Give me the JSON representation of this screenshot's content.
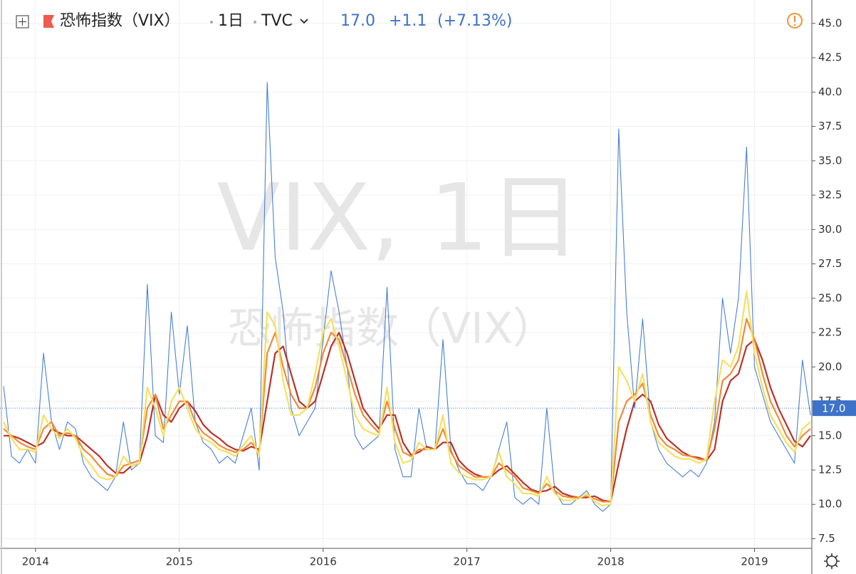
{
  "header": {
    "symbol": "恐怖指数（VIX）",
    "interval": "1日",
    "exchange": "TVC",
    "price": "17.0",
    "change": "+1.1",
    "change_pct": "(+7.13%)"
  },
  "watermark": {
    "line1": "VIX, 1日",
    "line2": "恐怖指数（VIX）"
  },
  "chart_data": {
    "type": "line",
    "categories": [
      null,
      null,
      null,
      null,
      "2014",
      null,
      null,
      null,
      null,
      null,
      null,
      null,
      null,
      null,
      null,
      null,
      null,
      null,
      null,
      null,
      null,
      null,
      "2015",
      null,
      null,
      null,
      null,
      null,
      null,
      null,
      null,
      null,
      null,
      null,
      null,
      null,
      null,
      null,
      null,
      null,
      "2016",
      null,
      null,
      null,
      null,
      null,
      null,
      null,
      null,
      null,
      null,
      null,
      null,
      null,
      null,
      null,
      null,
      null,
      "2017",
      null,
      null,
      null,
      null,
      null,
      null,
      null,
      null,
      null,
      null,
      null,
      null,
      null,
      null,
      null,
      null,
      null,
      "2018",
      null,
      null,
      null,
      null,
      null,
      null,
      null,
      null,
      null,
      null,
      null,
      null,
      null,
      null,
      null,
      null,
      null,
      "2019",
      null,
      null,
      null,
      null,
      null,
      null,
      null
    ],
    "series": [
      {
        "color": "#4a7fd4",
        "values": [
          18.6,
          13.5,
          13,
          14,
          13,
          21,
          16,
          14,
          16,
          15.5,
          13,
          12,
          11.5,
          11,
          12,
          16,
          12.5,
          13,
          26,
          15,
          14.5,
          24,
          18,
          23,
          16,
          14.5,
          14,
          13,
          13.5,
          13,
          15,
          17,
          12.5,
          40.7,
          28,
          24,
          17,
          15,
          16,
          17,
          22,
          27,
          24,
          20,
          15,
          14,
          14.5,
          15,
          25.8,
          14,
          12,
          12,
          17,
          14,
          14,
          22,
          14,
          12.5,
          11.5,
          11.5,
          11,
          12,
          14,
          16,
          10.5,
          10,
          10.5,
          10,
          17,
          11,
          10,
          10,
          10.5,
          11,
          10,
          9.5,
          10,
          37.3,
          24,
          17,
          23.5,
          16,
          14,
          13,
          12.5,
          12,
          12.5,
          12,
          13,
          16,
          25,
          21,
          25,
          36,
          20,
          18,
          16,
          15,
          14,
          13,
          20.5,
          16.5
        ]
      },
      {
        "color": "#b8322a",
        "values": [
          15,
          15,
          14.8,
          14.5,
          14.2,
          14.5,
          15.5,
          15.2,
          15,
          15,
          14.5,
          14,
          13.5,
          12.8,
          12.3,
          12.3,
          12.8,
          13,
          15,
          18,
          16.5,
          16,
          17,
          17.5,
          16.8,
          15.8,
          15.2,
          14.8,
          14.3,
          14,
          13.9,
          14.2,
          14,
          17.5,
          21,
          21.5,
          19.5,
          17.5,
          17,
          17.5,
          19.5,
          21.5,
          22.5,
          21,
          19,
          17,
          16.2,
          15.5,
          16.5,
          16.5,
          14.5,
          13.6,
          13.8,
          14.2,
          14,
          14.5,
          14.5,
          13.2,
          12.6,
          12.2,
          12,
          12,
          12.5,
          12.8,
          12.2,
          11.6,
          11.1,
          10.9,
          11,
          11.3,
          10.8,
          10.6,
          10.5,
          10.5,
          10.6,
          10.3,
          10.2,
          13,
          15.5,
          17.5,
          18,
          17.5,
          15.8,
          14.8,
          14.3,
          13.8,
          13.5,
          13.4,
          13.2,
          14,
          17.5,
          19,
          19.5,
          21.5,
          22,
          20.5,
          18.5,
          17,
          15.8,
          14.6,
          14.2,
          15
        ]
      },
      {
        "color": "#ee8a3a",
        "values": [
          15.5,
          15,
          14.5,
          14.2,
          14,
          15.5,
          16,
          15,
          15.2,
          15,
          14,
          13.5,
          12.8,
          12.2,
          12,
          12.8,
          13,
          13.2,
          17,
          18,
          15.5,
          16.5,
          17.5,
          17.5,
          16,
          15.2,
          14.8,
          14.3,
          14,
          13.8,
          14,
          14.5,
          13.8,
          21,
          22.5,
          20,
          18,
          17,
          17,
          18.5,
          21,
          22.5,
          22,
          20,
          18,
          16.5,
          15.8,
          15.2,
          17.5,
          15.5,
          13.8,
          13.5,
          14,
          14,
          14,
          15.5,
          13.8,
          12.8,
          12.4,
          12,
          12,
          12,
          13,
          12.5,
          12,
          11.2,
          11,
          10.8,
          11.5,
          11,
          10.6,
          10.5,
          10.5,
          10.6,
          10.4,
          10.2,
          10.2,
          16,
          17.5,
          18,
          18.8,
          16.5,
          15,
          14.3,
          14,
          13.6,
          13.5,
          13.3,
          13.2,
          15.5,
          19,
          19.5,
          20.5,
          23.5,
          22,
          19.5,
          17.5,
          16.3,
          15,
          14.2,
          15,
          15.5
        ]
      },
      {
        "color": "#f5e060",
        "values": [
          16,
          14.8,
          14,
          14,
          13.8,
          16.5,
          15.5,
          14.8,
          15.5,
          14.8,
          13.5,
          12.8,
          12,
          11.8,
          12,
          13.5,
          12.8,
          13,
          18.5,
          17,
          15,
          17.5,
          18.5,
          17,
          15.5,
          14.8,
          14.5,
          14,
          13.8,
          13.5,
          14.3,
          15,
          13.5,
          24,
          23,
          19,
          16.5,
          16.5,
          17,
          19.5,
          22.5,
          23.5,
          21.5,
          19,
          16.5,
          15.5,
          15.2,
          15,
          18.5,
          14.5,
          13,
          13.2,
          14.5,
          14,
          14,
          16.5,
          13,
          12.3,
          12,
          11.8,
          11.8,
          12,
          13.8,
          12,
          11.5,
          10.8,
          10.8,
          10.6,
          12,
          10.8,
          10.3,
          10.3,
          10.4,
          10.8,
          10.2,
          9.9,
          10,
          20,
          19,
          17.5,
          19.5,
          16,
          14.5,
          14,
          13.5,
          13.3,
          13.3,
          13,
          13.3,
          17.5,
          20.5,
          20,
          21.5,
          25.5,
          21,
          18.5,
          16.5,
          15.5,
          14.5,
          13.8,
          15.5,
          16
        ]
      }
    ],
    "ylim": [
      6.8,
      46.7
    ],
    "yticks": [
      7.5,
      {
        "value": 10,
        "label": "10.0"
      },
      12.5,
      {
        "value": 15,
        "label": "15.0"
      },
      17.5,
      {
        "value": 20,
        "label": "20.0"
      },
      22.5,
      {
        "value": 25,
        "label": "25.0"
      },
      27.5,
      {
        "value": 30,
        "label": "30.0"
      },
      32.5,
      {
        "value": 35,
        "label": "35.0"
      },
      37.5,
      {
        "value": 40,
        "label": "40.0"
      },
      42.5,
      {
        "value": 45,
        "label": "45.0"
      }
    ],
    "last_price": {
      "value": 17,
      "label": "17.0"
    },
    "grid": true
  }
}
